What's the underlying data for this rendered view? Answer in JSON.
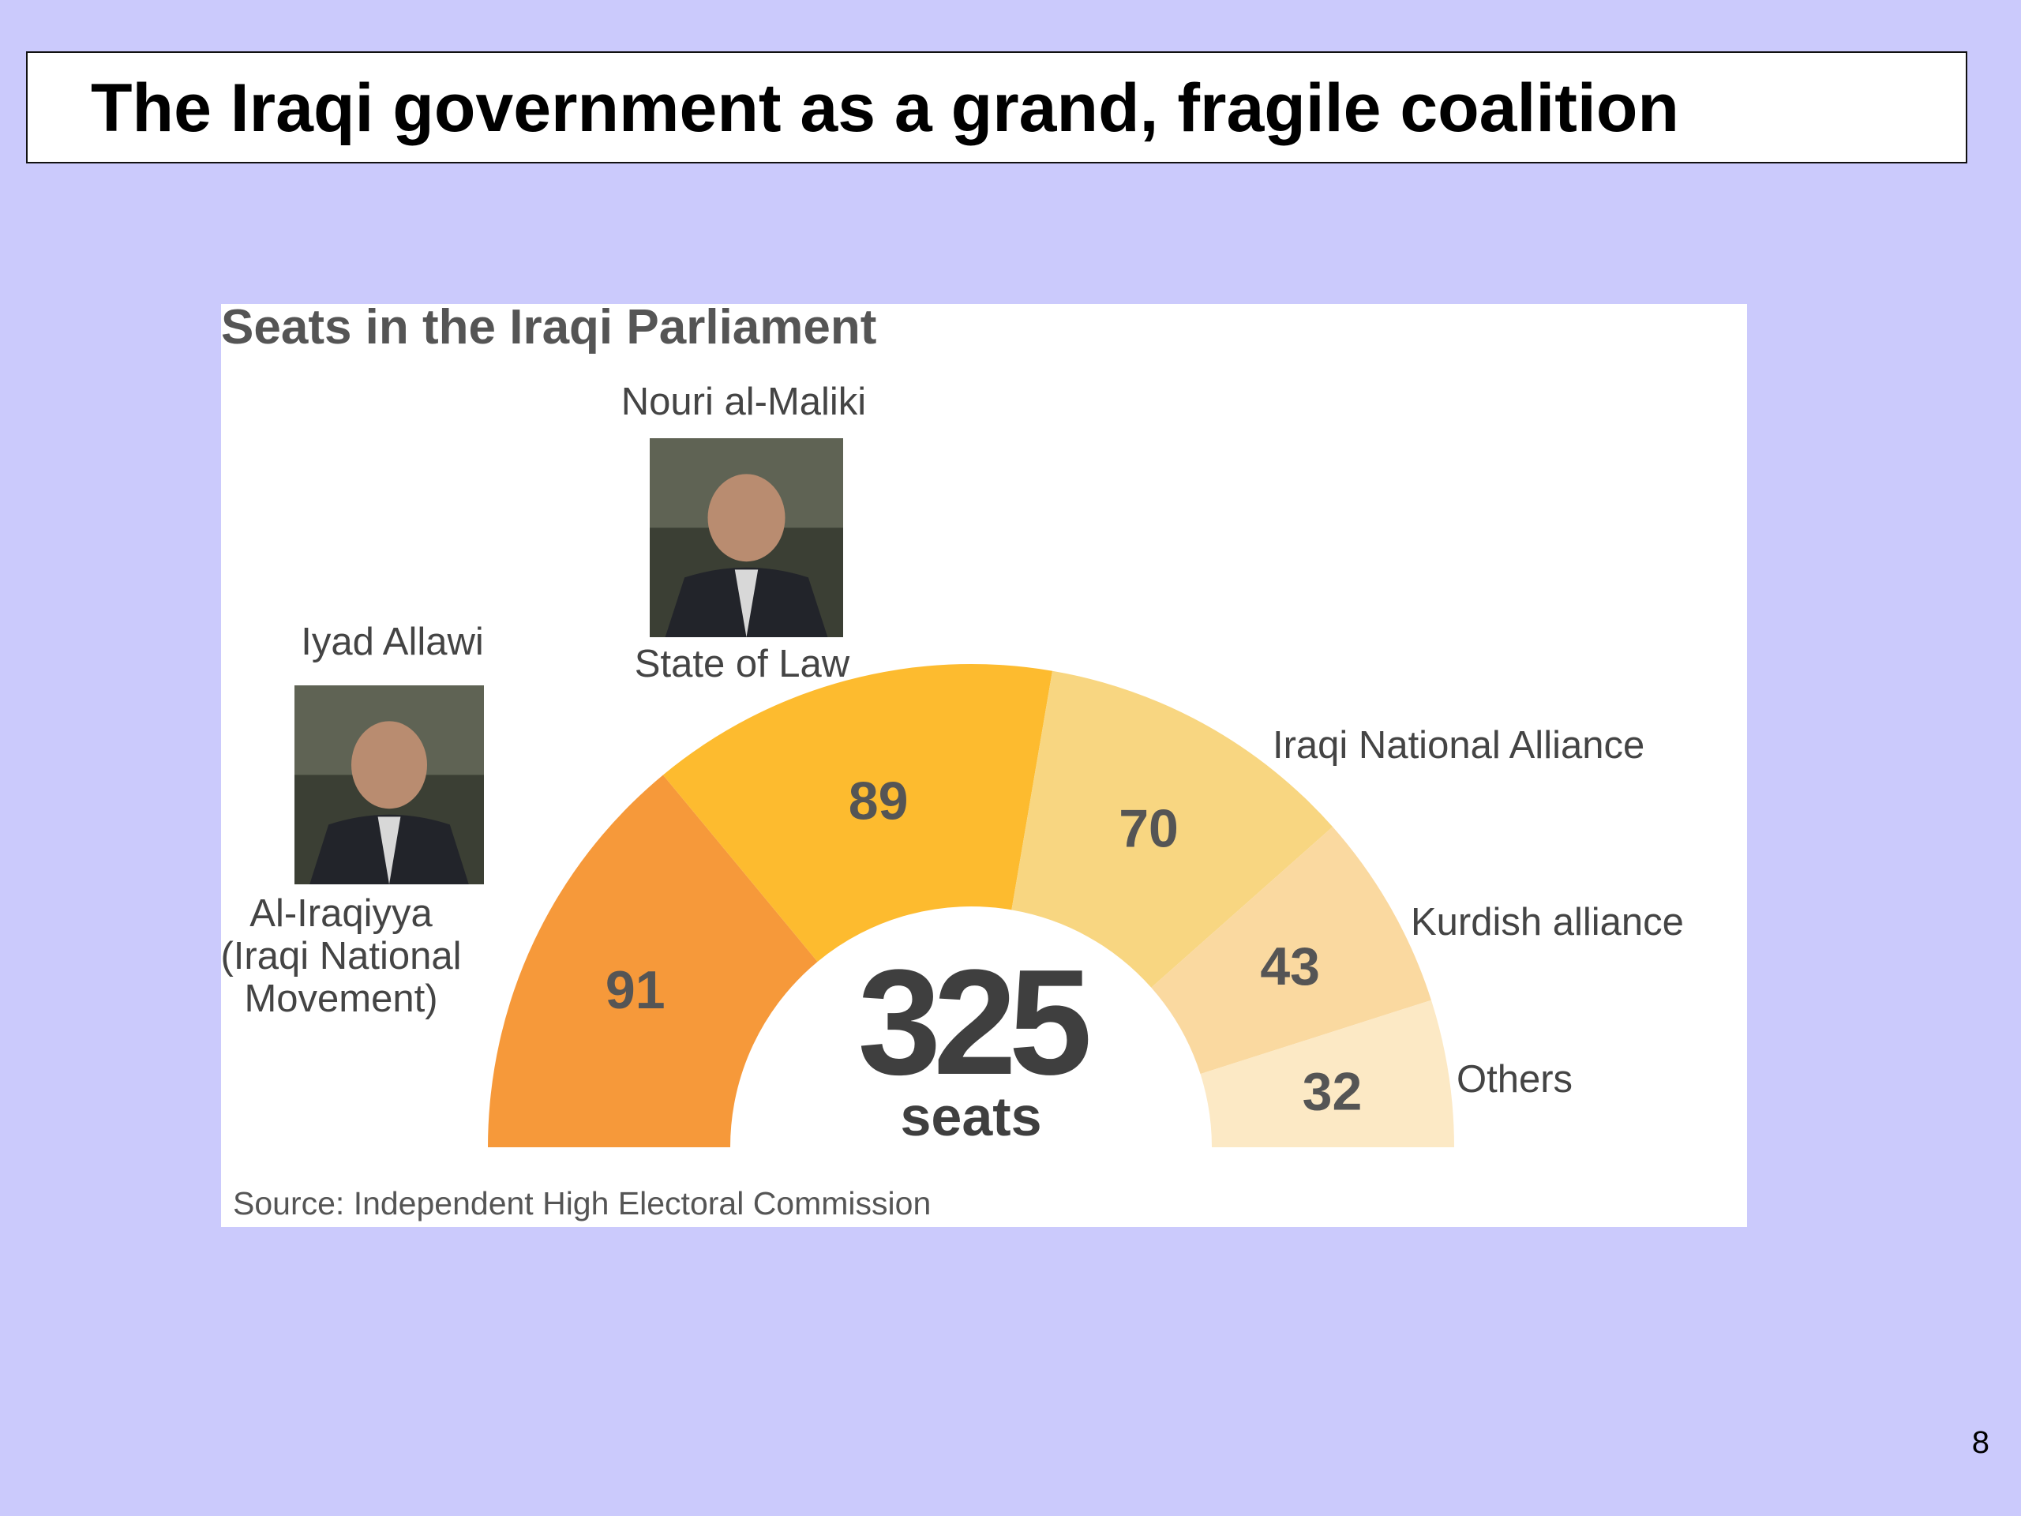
{
  "slide": {
    "title": "The Iraqi government as a grand, fragile coalition",
    "page_number": "8"
  },
  "chart_data": {
    "type": "pie",
    "variant": "semicircle",
    "title": "Seats in the Iraqi Parliament",
    "total_value": "325",
    "total_unit": "seats",
    "source": "Source: Independent High Electoral Commission",
    "slices": [
      {
        "label_lines": [
          "Al-Iraqiyya",
          "(Iraqi National",
          "Movement)"
        ],
        "value": 91,
        "color": "#f6993a",
        "leader": "Iyad Allawi",
        "photo": true
      },
      {
        "label_lines": [
          "State of Law"
        ],
        "value": 89,
        "color": "#fdbb2f",
        "leader": "Nouri al-Maliki",
        "photo": true
      },
      {
        "label_lines": [
          "Iraqi National Alliance"
        ],
        "value": 70,
        "color": "#f8d681",
        "leader": "",
        "photo": false
      },
      {
        "label_lines": [
          "Kurdish alliance"
        ],
        "value": 43,
        "color": "#fad9a0",
        "leader": "",
        "photo": false
      },
      {
        "label_lines": [
          "Others"
        ],
        "value": 32,
        "color": "#fce9c5",
        "leader": "",
        "photo": false
      }
    ],
    "text_color": "#555555",
    "label_color": "#444444"
  }
}
